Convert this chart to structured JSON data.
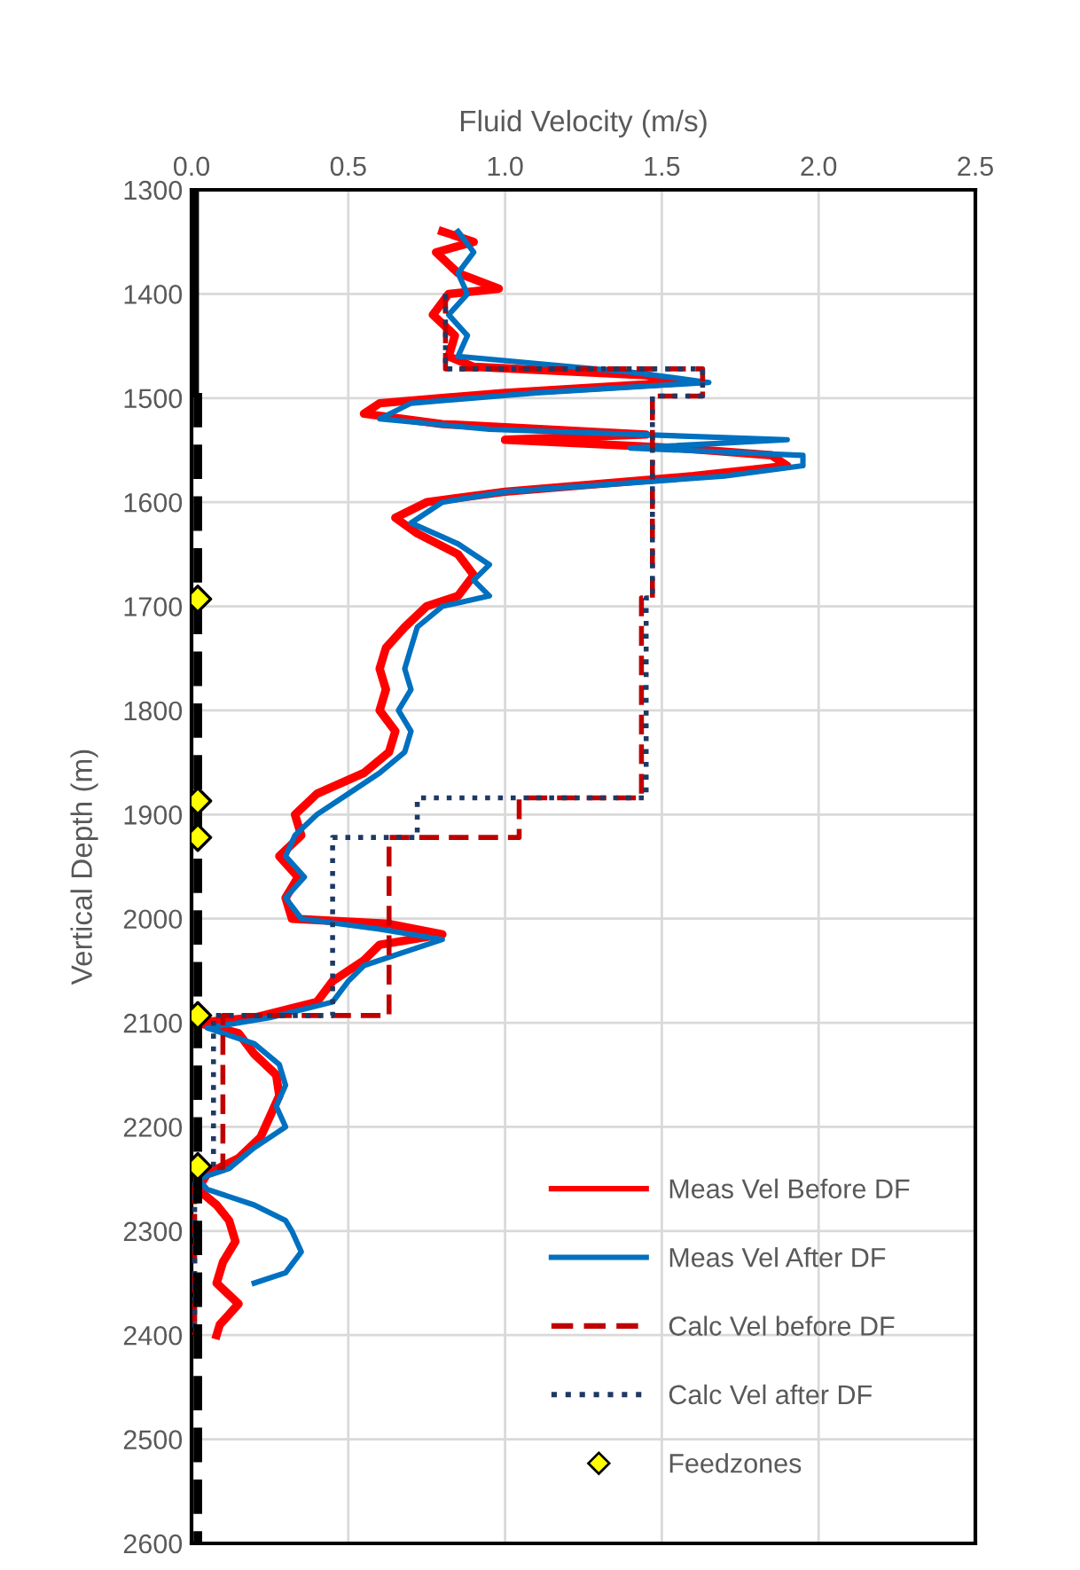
{
  "chart_data": {
    "type": "line",
    "xlabel": "Fluid Velocity (m/s)",
    "ylabel": "Vertical Depth (m)",
    "xlim": [
      0,
      2.5
    ],
    "xticks": [
      {
        "value": 0,
        "label": "0.0"
      },
      0.5,
      {
        "value": 1,
        "label": "1.0"
      },
      1.5,
      {
        "value": 2,
        "label": "2.0"
      },
      2.5
    ],
    "ylim": [
      2600,
      1300
    ],
    "yticks": [
      1300,
      1400,
      1500,
      1600,
      1700,
      1800,
      1900,
      2000,
      2100,
      2200,
      2300,
      2400,
      2500,
      2600
    ],
    "grid": true,
    "legend": "bottom right",
    "series": [
      {
        "name": "Meas Vel Before DF",
        "color": "#ff0000",
        "line_style": "solid",
        "x": [
          0.8,
          0.9,
          0.78,
          0.85,
          0.98,
          0.82,
          0.77,
          0.84,
          0.82,
          0.9,
          1.45,
          1.55,
          1.0,
          0.6,
          0.55,
          0.8,
          1.45,
          1.0,
          1.55,
          1.85,
          1.9,
          1.6,
          1.0,
          0.75,
          0.65,
          0.72,
          0.85,
          0.9,
          0.85,
          0.75,
          0.68,
          0.62,
          0.6,
          0.62,
          0.6,
          0.65,
          0.63,
          0.55,
          0.4,
          0.33,
          0.35,
          0.28,
          0.34,
          0.3,
          0.32,
          0.63,
          0.8,
          0.6,
          0.55,
          0.45,
          0.4,
          0.2,
          0.02,
          0.15,
          0.2,
          0.27,
          0.28,
          0.25,
          0.22,
          0.15,
          0.05,
          0.02,
          0.08,
          0.12,
          0.14,
          0.1,
          0.08,
          0.15,
          0.09,
          0.08
        ],
        "values": [
          1340,
          1350,
          1360,
          1380,
          1395,
          1400,
          1420,
          1440,
          1460,
          1470,
          1478,
          1485,
          1495,
          1505,
          1515,
          1525,
          1535,
          1540,
          1548,
          1555,
          1565,
          1575,
          1590,
          1600,
          1615,
          1630,
          1650,
          1670,
          1690,
          1700,
          1720,
          1740,
          1760,
          1780,
          1800,
          1820,
          1840,
          1860,
          1880,
          1900,
          1920,
          1940,
          1960,
          1980,
          2000,
          2005,
          2015,
          2025,
          2040,
          2060,
          2080,
          2095,
          2100,
          2110,
          2130,
          2150,
          2170,
          2190,
          2210,
          2230,
          2245,
          2260,
          2275,
          2290,
          2310,
          2330,
          2350,
          2370,
          2390,
          2400
        ]
      },
      {
        "name": "Meas Vel After DF",
        "color": "#0070c0",
        "line_style": "solid",
        "x": [
          0.85,
          0.9,
          0.85,
          0.88,
          0.82,
          0.88,
          0.85,
          1.4,
          1.65,
          1.1,
          0.7,
          0.6,
          0.95,
          1.9,
          1.4,
          1.95,
          1.95,
          1.7,
          1.0,
          0.8,
          0.7,
          0.85,
          0.95,
          0.9,
          0.95,
          0.8,
          0.72,
          0.7,
          0.68,
          0.7,
          0.66,
          0.7,
          0.68,
          0.6,
          0.5,
          0.4,
          0.33,
          0.3,
          0.36,
          0.3,
          0.35,
          0.6,
          0.8,
          0.7,
          0.55,
          0.5,
          0.45,
          0.25,
          0.05,
          0.2,
          0.28,
          0.3,
          0.27,
          0.3,
          0.2,
          0.12,
          0.02,
          0.05,
          0.2,
          0.3,
          0.32,
          0.35,
          0.3,
          0.2
        ],
        "values": [
          1340,
          1360,
          1380,
          1400,
          1420,
          1440,
          1460,
          1475,
          1485,
          1495,
          1505,
          1520,
          1530,
          1540,
          1548,
          1555,
          1565,
          1575,
          1590,
          1600,
          1620,
          1640,
          1660,
          1675,
          1690,
          1700,
          1720,
          1740,
          1760,
          1780,
          1800,
          1820,
          1840,
          1860,
          1880,
          1900,
          1920,
          1940,
          1960,
          1980,
          2000,
          2010,
          2020,
          2030,
          2045,
          2060,
          2080,
          2095,
          2105,
          2120,
          2140,
          2160,
          2180,
          2200,
          2220,
          2240,
          2250,
          2260,
          2275,
          2290,
          2300,
          2320,
          2340,
          2350
        ]
      },
      {
        "name": "Calc Vel before DF",
        "color": "#c00000",
        "line_style": "dashed",
        "x": [
          0.81,
          0.81,
          1.63,
          1.63,
          1.47,
          1.47,
          1.435,
          1.435,
          1.045,
          1.045,
          0.63,
          0.63,
          0.1,
          0.1,
          0.01,
          0.01
        ],
        "values": [
          1400,
          1472,
          1472,
          1498,
          1498,
          1692,
          1692,
          1884,
          1884,
          1922,
          1922,
          2093,
          2093,
          2239,
          2239,
          2400
        ]
      },
      {
        "name": "Calc Vel after DF",
        "color": "#1f3864",
        "line_style": "dotted",
        "x": [
          0.81,
          0.81,
          1.63,
          1.63,
          1.47,
          1.47,
          1.45,
          1.45,
          0.72,
          0.72,
          0.45,
          0.45,
          0.07,
          0.07,
          0.01,
          0.01
        ],
        "values": [
          1400,
          1472,
          1472,
          1498,
          1498,
          1692,
          1692,
          1884,
          1884,
          1922,
          1922,
          2093,
          2093,
          2239,
          2239,
          2400
        ]
      },
      {
        "name": "Feedzones",
        "type": "scatter",
        "marker": "diamond",
        "color": "#ffff00",
        "x": [
          0.02,
          0.02,
          0.02,
          0.02,
          0.02
        ],
        "values": [
          1693,
          1887,
          1922,
          2093,
          2238
        ]
      },
      {
        "color": "#000000",
        "line_style": "solid",
        "x": [
          0.01,
          0.01
        ],
        "values": [
          1300,
          1495
        ]
      },
      {
        "color": "#000000",
        "line_style": "dashed",
        "x": [
          0.02,
          0.02
        ],
        "values": [
          1495,
          2600
        ]
      }
    ]
  }
}
